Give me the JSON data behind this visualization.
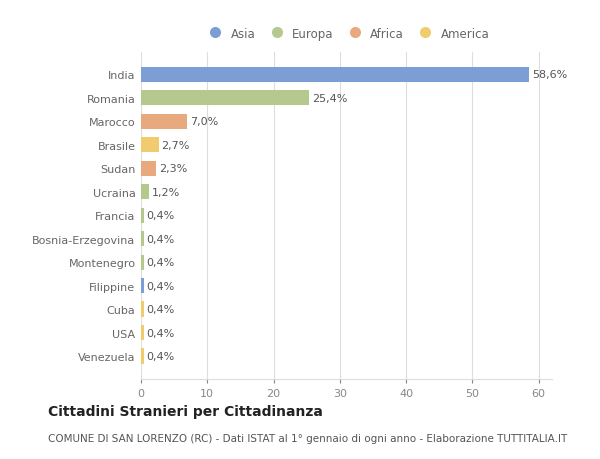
{
  "categories": [
    "India",
    "Romania",
    "Marocco",
    "Brasile",
    "Sudan",
    "Ucraina",
    "Francia",
    "Bosnia-Erzegovina",
    "Montenegro",
    "Filippine",
    "Cuba",
    "USA",
    "Venezuela"
  ],
  "values": [
    58.6,
    25.4,
    7.0,
    2.7,
    2.3,
    1.2,
    0.4,
    0.4,
    0.4,
    0.4,
    0.4,
    0.4,
    0.4
  ],
  "labels": [
    "58,6%",
    "25,4%",
    "7,0%",
    "2,7%",
    "2,3%",
    "1,2%",
    "0,4%",
    "0,4%",
    "0,4%",
    "0,4%",
    "0,4%",
    "0,4%",
    "0,4%"
  ],
  "colors": [
    "#7b9fd4",
    "#b5c98e",
    "#e8a97e",
    "#f0cc6e",
    "#e8a97e",
    "#b5c98e",
    "#b5c98e",
    "#b5c98e",
    "#b5c98e",
    "#7b9fd4",
    "#f0cc6e",
    "#f0cc6e",
    "#f0cc6e"
  ],
  "legend_labels": [
    "Asia",
    "Europa",
    "Africa",
    "America"
  ],
  "legend_colors": [
    "#7b9fd4",
    "#b5c98e",
    "#e8a97e",
    "#f0cc6e"
  ],
  "title": "Cittadini Stranieri per Cittadinanza",
  "subtitle": "COMUNE DI SAN LORENZO (RC) - Dati ISTAT al 1° gennaio di ogni anno - Elaborazione TUTTITALIA.IT",
  "xlim": [
    0,
    62
  ],
  "xticks": [
    0,
    10,
    20,
    30,
    40,
    50,
    60
  ],
  "background_color": "#ffffff",
  "grid_color": "#dddddd",
  "bar_height": 0.65,
  "title_fontsize": 10,
  "subtitle_fontsize": 7.5,
  "label_fontsize": 8,
  "tick_fontsize": 8,
  "legend_fontsize": 8.5
}
